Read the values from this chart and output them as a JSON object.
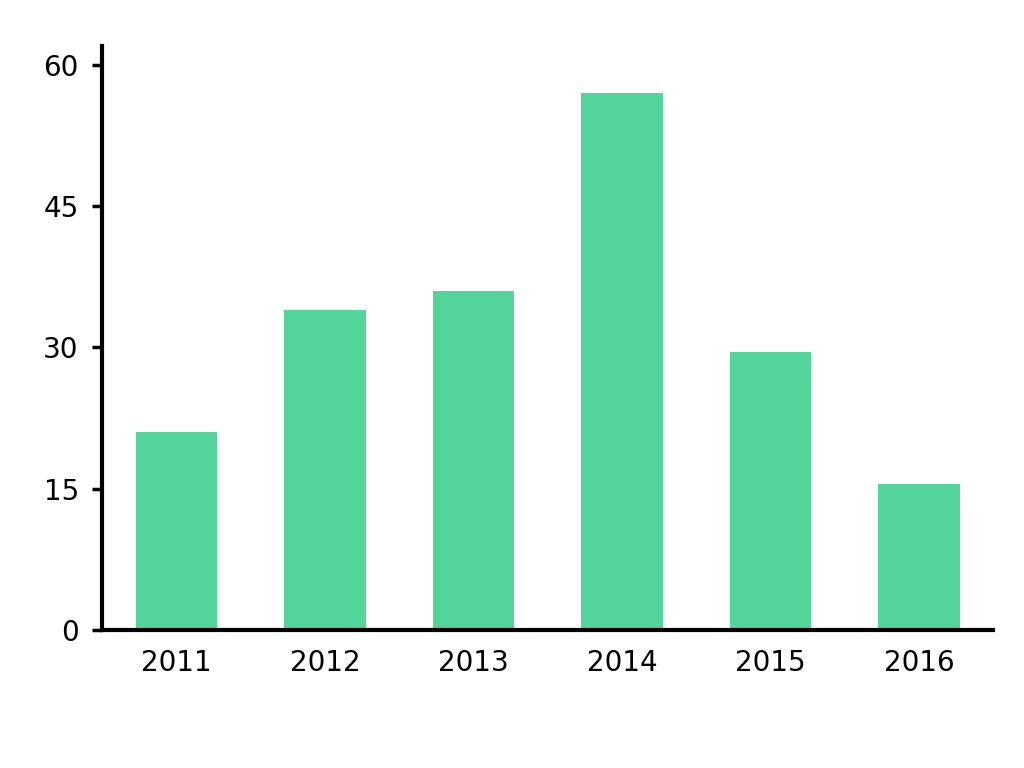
{
  "categories": [
    "2011",
    "2012",
    "2013",
    "2014",
    "2015",
    "2016"
  ],
  "values": [
    21,
    34,
    36,
    57,
    29.5,
    15.5
  ],
  "bar_color": "#52D49A",
  "ylim": [
    0,
    62
  ],
  "yticks": [
    0,
    15,
    30,
    45,
    60
  ],
  "background_color": "#ffffff",
  "tick_fontsize": 20,
  "axis_linewidth": 3.0,
  "bar_width": 0.55
}
